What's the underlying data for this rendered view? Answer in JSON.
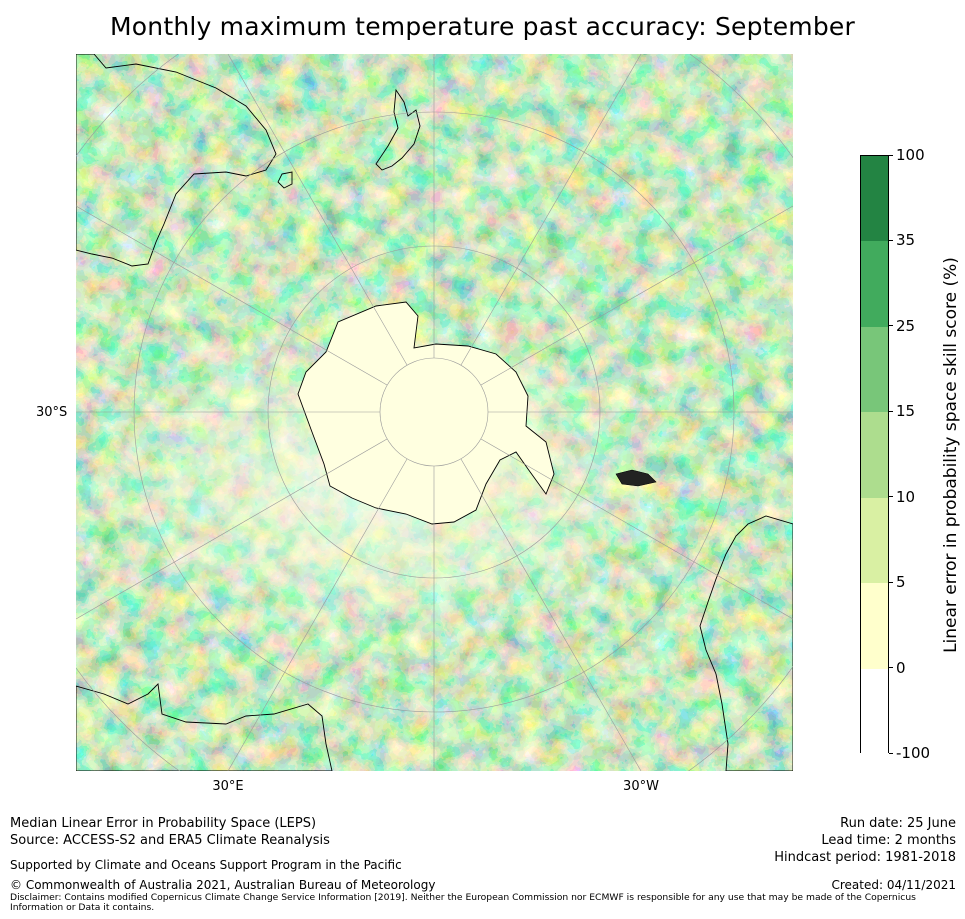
{
  "title": "Monthly maximum temperature past accuracy: September",
  "map": {
    "projection": "south-polar-stereographic",
    "lat_label": "30°S",
    "lon_labels": [
      "30°E",
      "30°W"
    ],
    "land_outline_color": "#000000",
    "graticule_color": "#9a9a9a"
  },
  "colorbar": {
    "label": "Linear error in probability space skill score (%)",
    "ticks": [
      "-100",
      "0",
      "5",
      "10",
      "15",
      "25",
      "35",
      "100"
    ],
    "bins": [
      {
        "from": -100,
        "to": 0,
        "color": "#ffffff"
      },
      {
        "from": 0,
        "to": 5,
        "color": "#ffffcc"
      },
      {
        "from": 5,
        "to": 10,
        "color": "#d9f0a3"
      },
      {
        "from": 10,
        "to": 15,
        "color": "#addd8e"
      },
      {
        "from": 15,
        "to": 25,
        "color": "#78c679"
      },
      {
        "from": 25,
        "to": 35,
        "color": "#41ab5d"
      },
      {
        "from": 35,
        "to": 100,
        "color": "#238443"
      }
    ]
  },
  "footer": {
    "method": "Median Linear Error in Probability Space (LEPS)",
    "source": "Source: ACCESS-S2 and ERA5 Climate Reanalysis",
    "support": "Supported by Climate and Oceans Support Program in the Pacific",
    "copyright": "© Commonwealth of Australia 2021, Australian Bureau of Meteorology",
    "disclaimer_1": "Disclaimer: Contains modified Copernicus Climate Change Service Information [2019]. Neither the European Commission nor ECMWF is responsible for any use that may be made of the Copernicus",
    "disclaimer_2": "Information or Data it contains.",
    "run_date": "Run date: 25 June",
    "lead_time": "Lead time: 2 months",
    "hindcast": "Hindcast period: 1981-2018",
    "created": "Created: 04/11/2021"
  }
}
